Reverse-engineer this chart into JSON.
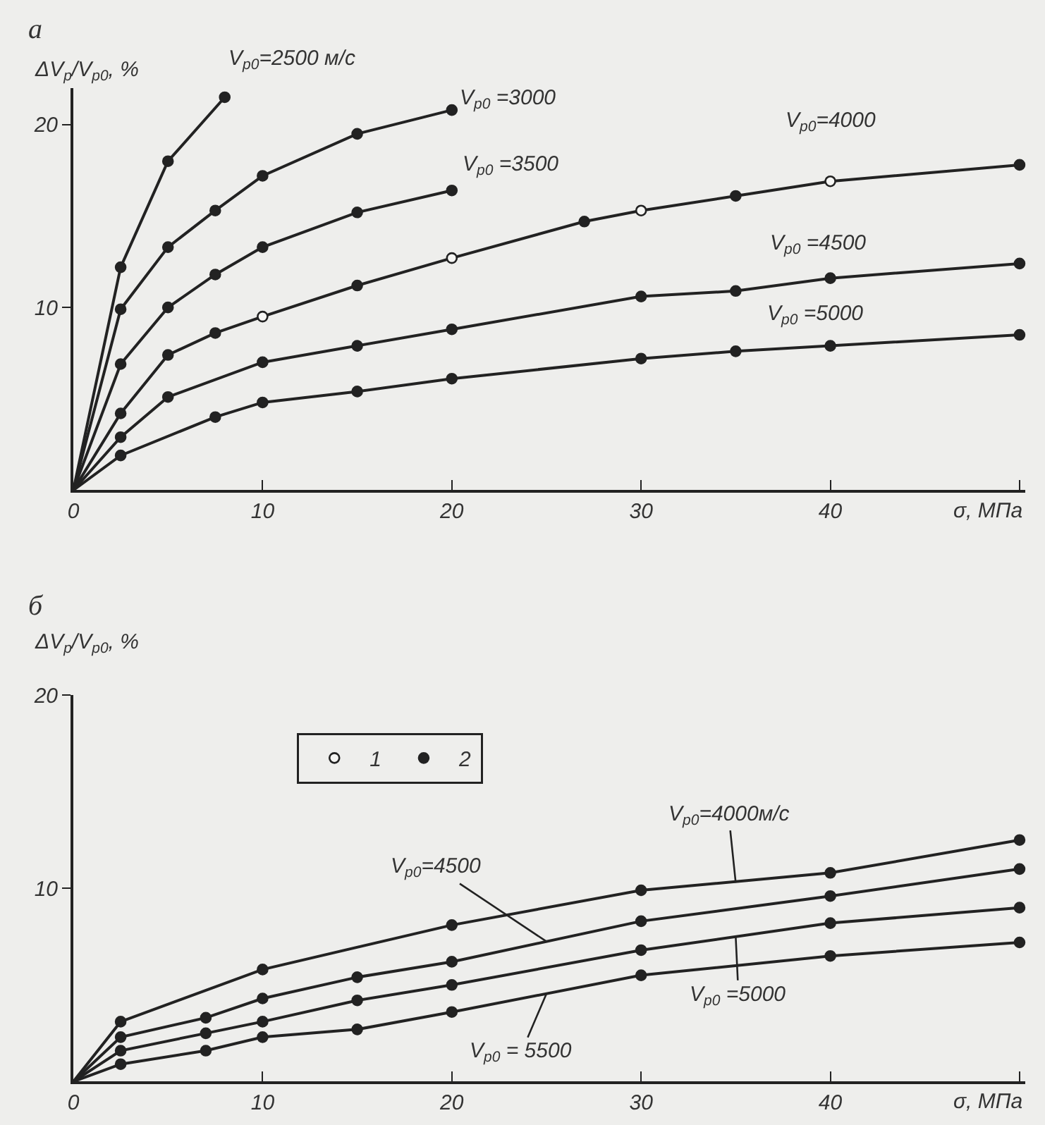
{
  "chart_data": [
    {
      "type": "line",
      "title": "а",
      "xlabel": "σ, МПа",
      "ylabel": "ΔV$_{p}$/V$_{p0}$, %",
      "xlim": [
        0,
        50.3
      ],
      "ylim": [
        0,
        22
      ],
      "xticks": [
        0,
        10,
        20,
        30,
        40,
        {
          "value": 50,
          "label": null
        }
      ],
      "yticks": [
        10,
        20
      ],
      "grid": false,
      "legend": "bottom",
      "line_style": "solid",
      "series": [
        {
          "marker": "none",
          "color": "#222222",
          "x": [
            0,
            2.5,
            5,
            8
          ],
          "values": [
            0,
            12.2,
            18.0,
            21.5
          ]
        },
        {
          "marker": "none",
          "color": "#222222",
          "x": [
            0,
            2.5,
            5,
            7.5,
            10,
            15,
            20
          ],
          "values": [
            0,
            9.9,
            13.3,
            15.3,
            17.2,
            19.5,
            20.8
          ]
        },
        {
          "marker": "none",
          "color": "#222222",
          "x": [
            0,
            2.5,
            5,
            7.5,
            10,
            15,
            20
          ],
          "values": [
            0,
            6.9,
            10.0,
            11.8,
            13.3,
            15.2,
            16.4
          ]
        },
        {
          "marker": "none",
          "color": "#222222",
          "x": [
            0,
            2.5,
            5,
            7.5,
            10,
            15,
            20,
            27,
            30,
            35,
            40,
            50
          ],
          "values": [
            0,
            4.2,
            7.4,
            8.6,
            9.5,
            11.2,
            12.7,
            14.7,
            15.3,
            16.1,
            16.9,
            17.8
          ]
        },
        {
          "marker": "none",
          "color": "#222222",
          "x": [
            0,
            2.5,
            5,
            10,
            15,
            20,
            30,
            35,
            40,
            50
          ],
          "values": [
            0,
            2.9,
            5.1,
            7.0,
            7.9,
            8.8,
            10.6,
            10.9,
            11.6,
            12.4
          ]
        },
        {
          "marker": "none",
          "color": "#222222",
          "x": [
            0,
            2.5,
            7.5,
            10,
            15,
            20,
            30,
            35,
            40,
            50
          ],
          "values": [
            0,
            1.9,
            4.0,
            4.8,
            5.4,
            6.1,
            7.2,
            7.6,
            7.9,
            8.5
          ]
        },
        {
          "type": "scatter",
          "name": "1",
          "marker": "circle",
          "color": "#f6f6f4",
          "x": [
            10,
            20,
            30,
            40
          ],
          "values": [
            9.5,
            12.7,
            15.3,
            16.9
          ]
        },
        {
          "type": "scatter",
          "name": "2",
          "marker": "circle",
          "color": "#222222",
          "x": [
            2.5,
            5,
            8,
            2.5,
            5,
            7.5,
            10,
            15,
            20,
            2.5,
            5,
            7.5,
            10,
            15,
            20,
            2.5,
            5,
            7.5,
            15,
            27,
            35,
            50,
            2.5,
            5,
            10,
            15,
            20,
            30,
            35,
            40,
            50,
            2.5,
            7.5,
            10,
            15,
            20,
            30,
            35,
            40,
            50
          ],
          "values": [
            12.2,
            18.0,
            21.5,
            9.9,
            13.3,
            15.3,
            17.2,
            19.5,
            20.8,
            6.9,
            10.0,
            11.8,
            13.3,
            15.2,
            16.4,
            4.2,
            7.4,
            8.6,
            11.2,
            14.7,
            16.1,
            17.8,
            2.9,
            5.1,
            7.0,
            7.9,
            8.8,
            10.6,
            10.9,
            11.6,
            12.4,
            1.9,
            4.0,
            4.8,
            5.4,
            6.1,
            7.2,
            7.6,
            7.9,
            8.5
          ]
        }
      ],
      "annotations": [
        {
          "text": "V$_{p0}$=2500 м/с",
          "x": 8,
          "y": 21.5
        },
        {
          "text": "V$_{p0}$ =3000",
          "x": 20,
          "y": 20.8
        },
        {
          "text": "V$_{p0}$ =3500",
          "x": 20,
          "y": 16.4
        },
        {
          "text": "V$_{p0}$=4000",
          "x": 40,
          "y": 16.9
        },
        {
          "text": "V$_{p0}$ =4500",
          "x": 40,
          "y": 11.6
        },
        {
          "text": "V$_{p0}$ =5000",
          "x": 40,
          "y": 7.9
        }
      ]
    },
    {
      "type": "line",
      "title": "б",
      "xlabel": "σ, МПа",
      "ylabel": "ΔV$_{p}$/V$_{p0}$, %",
      "xlim": [
        0,
        50.3
      ],
      "ylim": [
        0,
        20
      ],
      "xticks": [
        0,
        10,
        20,
        30,
        40,
        {
          "value": 50,
          "label": null
        }
      ],
      "yticks": [
        10,
        20
      ],
      "grid": false,
      "line_style": "solid",
      "series": [
        {
          "marker": "none",
          "color": "#222222",
          "x": [
            0,
            2.5,
            10,
            20,
            30,
            40,
            50
          ],
          "values": [
            0,
            3.1,
            5.8,
            8.1,
            9.9,
            10.8,
            12.5
          ]
        },
        {
          "marker": "none",
          "color": "#222222",
          "x": [
            0,
            2.5,
            7,
            10,
            15,
            20,
            30,
            40,
            50
          ],
          "values": [
            0,
            2.3,
            3.3,
            4.3,
            5.4,
            6.2,
            8.3,
            9.6,
            11.0
          ]
        },
        {
          "marker": "none",
          "color": "#222222",
          "x": [
            0,
            2.5,
            7,
            10,
            15,
            20,
            30,
            40,
            50
          ],
          "values": [
            0,
            1.6,
            2.5,
            3.1,
            4.2,
            5.0,
            6.8,
            8.2,
            9.0
          ]
        },
        {
          "marker": "none",
          "color": "#222222",
          "x": [
            0,
            2.5,
            7,
            10,
            15,
            20,
            30,
            40,
            50
          ],
          "values": [
            0,
            0.9,
            1.6,
            2.3,
            2.7,
            3.6,
            5.5,
            6.5,
            7.2
          ]
        },
        {
          "type": "scatter",
          "marker": "circle",
          "color": "#222222",
          "x": [
            2.5,
            10,
            20,
            30,
            40,
            50,
            2.5,
            7,
            10,
            15,
            20,
            30,
            40,
            50,
            2.5,
            7,
            10,
            15,
            20,
            30,
            40,
            50,
            2.5,
            7,
            10,
            15,
            20,
            30,
            40,
            50
          ],
          "values": [
            3.1,
            5.8,
            8.1,
            9.9,
            10.8,
            12.5,
            2.3,
            3.3,
            4.3,
            5.4,
            6.2,
            8.3,
            9.6,
            11.0,
            1.6,
            2.5,
            3.1,
            4.2,
            5.0,
            6.8,
            8.2,
            9.0,
            0.9,
            1.6,
            2.3,
            2.7,
            3.6,
            5.5,
            6.5,
            7.2
          ]
        }
      ],
      "annotations": [
        {
          "text": "V$_{p0}$=4000м/с",
          "x": 35,
          "y": 10.3
        },
        {
          "text": "V$_{p0}$=4500",
          "x": 25,
          "y": 7.25
        },
        {
          "text": "V$_{p0}$ =5000",
          "x": 35,
          "y": 7.5
        },
        {
          "text": "V$_{p0}$ = 5500",
          "x": 25,
          "y": 4.55
        }
      ]
    }
  ]
}
